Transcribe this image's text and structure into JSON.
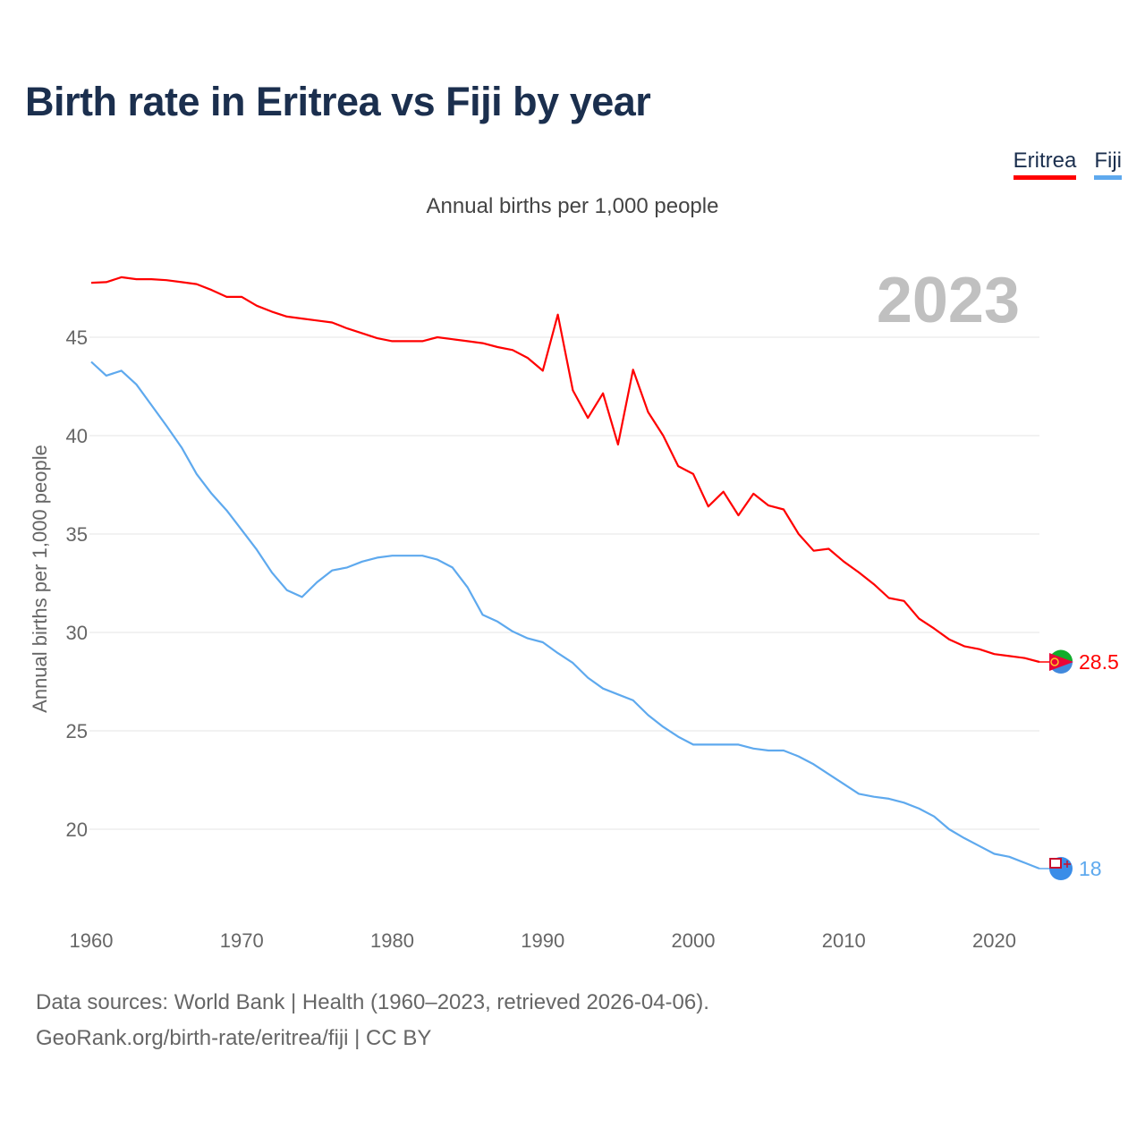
{
  "title": "Birth rate in Eritrea vs Fiji by year",
  "legend": [
    {
      "label": "Eritrea",
      "color": "#ff0000"
    },
    {
      "label": "Fiji",
      "color": "#5ea9ee"
    }
  ],
  "subtitle": "Annual births per 1,000 people",
  "year_badge": "2023",
  "footer": {
    "line1": "Data sources: World Bank | Health (1960–2023, retrieved 2026-04-06).",
    "line2": "GeoRank.org/birth-rate/eritrea/fiji | CC BY"
  },
  "chart_data": {
    "type": "line",
    "title": "Birth rate in Eritrea vs Fiji by year",
    "xlabel": "",
    "ylabel": "Annual births per 1,000 people",
    "xlim": [
      1960,
      2023
    ],
    "ylim": [
      17,
      49
    ],
    "xticks": [
      "1960",
      "1970",
      "1980",
      "1990",
      "2000",
      "2010",
      "2020"
    ],
    "yticks": [
      "20",
      "25",
      "30",
      "35",
      "40",
      "45"
    ],
    "grid": true,
    "legend_position": "top-right",
    "x": [
      1960,
      1961,
      1962,
      1963,
      1964,
      1965,
      1966,
      1967,
      1968,
      1969,
      1970,
      1971,
      1972,
      1973,
      1974,
      1975,
      1976,
      1977,
      1978,
      1979,
      1980,
      1981,
      1982,
      1983,
      1984,
      1985,
      1986,
      1987,
      1988,
      1989,
      1990,
      1991,
      1992,
      1993,
      1994,
      1995,
      1996,
      1997,
      1998,
      1999,
      2000,
      2001,
      2002,
      2003,
      2004,
      2005,
      2006,
      2007,
      2008,
      2009,
      2010,
      2011,
      2012,
      2013,
      2014,
      2015,
      2016,
      2017,
      2018,
      2019,
      2020,
      2021,
      2022,
      2023
    ],
    "series": [
      {
        "name": "Eritrea",
        "color": "#ff0000",
        "end_label": "28.5",
        "values": [
          47.77,
          47.8,
          48.05,
          47.95,
          47.95,
          47.9,
          47.8,
          47.7,
          47.4,
          47.05,
          47.05,
          46.6,
          46.3,
          46.05,
          45.95,
          45.85,
          45.75,
          45.45,
          45.2,
          44.95,
          44.8,
          44.8,
          44.8,
          45.0,
          44.9,
          44.8,
          44.7,
          44.5,
          44.35,
          43.95,
          43.3,
          46.15,
          42.3,
          40.9,
          42.15,
          39.55,
          43.35,
          41.2,
          40.0,
          38.45,
          38.05,
          36.4,
          37.15,
          35.95,
          37.05,
          36.45,
          36.25,
          35.0,
          34.15,
          34.25,
          33.6,
          33.05,
          32.45,
          31.75,
          31.6,
          30.7,
          30.2,
          29.65,
          29.3,
          29.15,
          28.9,
          28.8,
          28.7,
          28.5
        ]
      },
      {
        "name": "Fiji",
        "color": "#5ea9ee",
        "end_label": "18",
        "values": [
          43.75,
          43.05,
          43.3,
          42.6,
          41.55,
          40.5,
          39.4,
          38.05,
          37.05,
          36.2,
          35.2,
          34.2,
          33.05,
          32.15,
          31.8,
          32.55,
          33.15,
          33.3,
          33.6,
          33.8,
          33.9,
          33.9,
          33.9,
          33.7,
          33.3,
          32.3,
          30.9,
          30.55,
          30.05,
          29.7,
          29.5,
          28.95,
          28.45,
          27.7,
          27.15,
          26.85,
          26.55,
          25.8,
          25.2,
          24.7,
          24.3,
          24.3,
          24.3,
          24.3,
          24.1,
          24.0,
          24.0,
          23.7,
          23.3,
          22.8,
          22.3,
          21.8,
          21.65,
          21.55,
          21.35,
          21.05,
          20.65,
          20.0,
          19.55,
          19.15,
          18.75,
          18.6,
          18.3,
          18.0
        ]
      }
    ]
  }
}
